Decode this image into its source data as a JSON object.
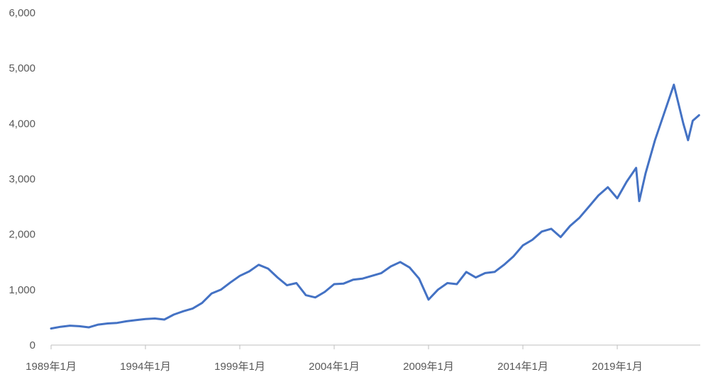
{
  "chart_data": {
    "type": "line",
    "title": "",
    "xlabel": "",
    "ylabel": "",
    "grid": false,
    "legend": "none",
    "line_color": "#4472C4",
    "axis_color": "#BFBFBF",
    "text_color": "#595959",
    "x_tick_labels": [
      "1989年1月",
      "1994年1月",
      "1999年1月",
      "2004年1月",
      "2009年1月",
      "2014年1月",
      "2019年1月"
    ],
    "y_tick_labels": [
      "0",
      "1,000",
      "2,000",
      "3,000",
      "4,000",
      "5,000",
      "6,000"
    ],
    "ylim": [
      0,
      6000
    ],
    "xlim": [
      "1989-01",
      "2023-05"
    ],
    "series": [
      {
        "x": [
          "1989-01",
          "1989-07",
          "1990-01",
          "1990-07",
          "1991-01",
          "1991-07",
          "1992-01",
          "1992-07",
          "1993-01",
          "1993-07",
          "1994-01",
          "1994-07",
          "1995-01",
          "1995-07",
          "1996-01",
          "1996-07",
          "1997-01",
          "1997-07",
          "1998-01",
          "1998-07",
          "1999-01",
          "1999-07",
          "2000-01",
          "2000-07",
          "2001-01",
          "2001-07",
          "2002-01",
          "2002-07",
          "2003-01",
          "2003-07",
          "2004-01",
          "2004-07",
          "2005-01",
          "2005-07",
          "2006-01",
          "2006-07",
          "2007-01",
          "2007-07",
          "2008-01",
          "2008-07",
          "2009-01",
          "2009-07",
          "2010-01",
          "2010-07",
          "2011-01",
          "2011-07",
          "2012-01",
          "2012-07",
          "2013-01",
          "2013-07",
          "2014-01",
          "2014-07",
          "2015-01",
          "2015-07",
          "2016-01",
          "2016-07",
          "2017-01",
          "2017-07",
          "2018-01",
          "2018-07",
          "2019-01",
          "2019-07",
          "2020-01",
          "2020-03",
          "2020-07",
          "2021-01",
          "2021-07",
          "2022-01",
          "2022-07",
          "2022-10",
          "2023-01",
          "2023-05"
        ],
        "values": [
          300,
          330,
          350,
          340,
          320,
          370,
          390,
          400,
          430,
          450,
          470,
          480,
          460,
          550,
          610,
          660,
          760,
          930,
          1000,
          1130,
          1250,
          1330,
          1450,
          1380,
          1220,
          1080,
          1120,
          900,
          860,
          960,
          1100,
          1110,
          1180,
          1200,
          1250,
          1300,
          1420,
          1500,
          1400,
          1200,
          820,
          1000,
          1120,
          1100,
          1320,
          1220,
          1300,
          1320,
          1450,
          1600,
          1800,
          1900,
          2050,
          2100,
          1950,
          2150,
          2300,
          2500,
          2700,
          2850,
          2650,
          2950,
          3200,
          2600,
          3100,
          3700,
          4200,
          4700,
          4000,
          3700,
          4050,
          4150
        ]
      }
    ]
  }
}
